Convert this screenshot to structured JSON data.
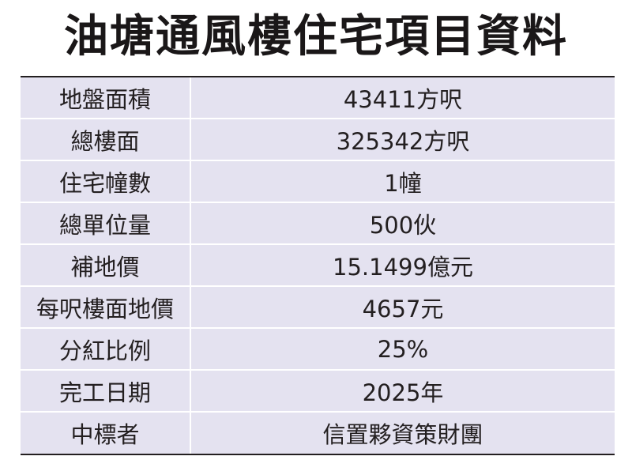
{
  "title": "油塘通風樓住宅項目資料",
  "rows": [
    {
      "label": "地盤面積",
      "value": "43411方呎"
    },
    {
      "label": "總樓面",
      "value": "325342方呎"
    },
    {
      "label": "住宅幢數",
      "value": "1幢"
    },
    {
      "label": "總單位量",
      "value": "500伙"
    },
    {
      "label": "補地價",
      "value": "15.1499億元"
    },
    {
      "label": "每呎樓面地價",
      "value": "4657元"
    },
    {
      "label": "分紅比例",
      "value": "25%"
    },
    {
      "label": "完工日期",
      "value": "2025年"
    },
    {
      "label": "中標者",
      "value": "信置夥資策財團"
    }
  ],
  "colors": {
    "row_background": "#e4e2f0",
    "rule": "#231f20",
    "text": "#231f20"
  }
}
